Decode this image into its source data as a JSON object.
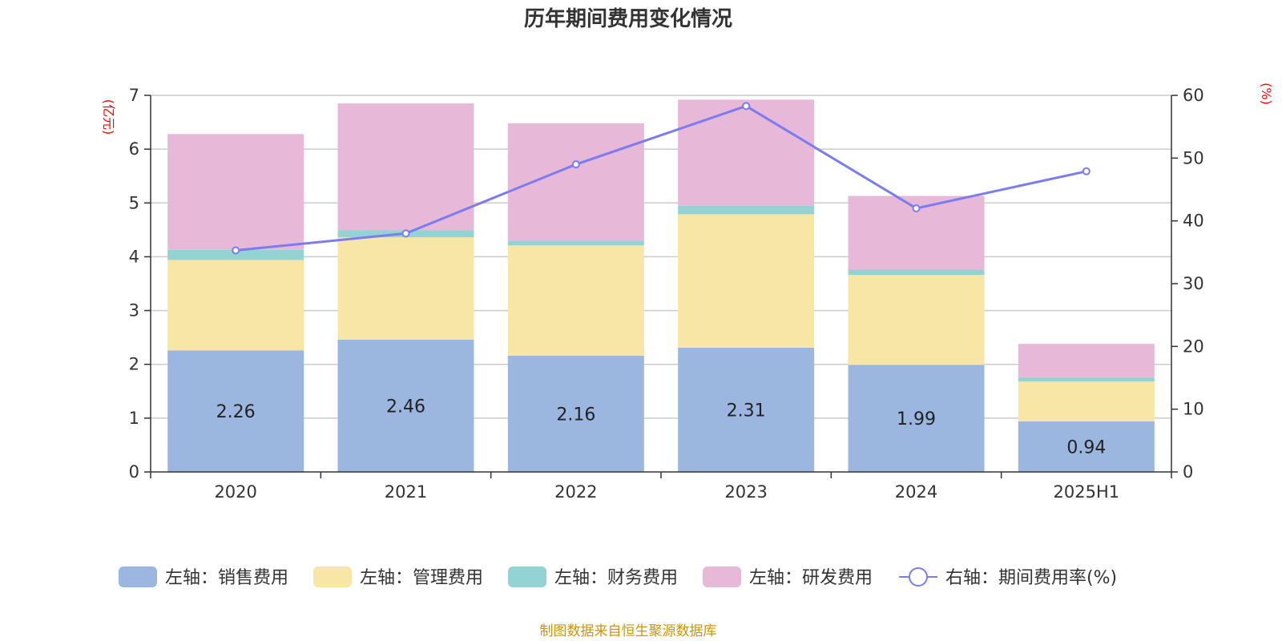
{
  "chart_data": {
    "type": "bar",
    "title": "历年期间费用变化情况",
    "categories": [
      "2020",
      "2021",
      "2022",
      "2023",
      "2024",
      "2025H1"
    ],
    "left_axis": {
      "unit": "(亿元)",
      "ylim": [
        0,
        7
      ],
      "ticks": [
        "0",
        "1",
        "2",
        "3",
        "4",
        "5",
        "6",
        "7"
      ]
    },
    "right_axis": {
      "unit": "(%)",
      "ylim": [
        0,
        60
      ],
      "ticks": [
        "0",
        "10",
        "20",
        "30",
        "40",
        "50",
        "60"
      ]
    },
    "grid": true,
    "legend_position": "bottom",
    "series": [
      {
        "name": "左轴：销售费用",
        "type": "bar",
        "stack": true,
        "axis": "left",
        "color": "#9bb7e0",
        "values": [
          2.26,
          2.46,
          2.16,
          2.31,
          1.99,
          0.94
        ],
        "labels": [
          "2.26",
          "2.46",
          "2.16",
          "2.31",
          "1.99",
          "0.94"
        ]
      },
      {
        "name": "左轴：管理费用",
        "type": "bar",
        "stack": true,
        "axis": "left",
        "color": "#f7e6a6",
        "values": [
          1.68,
          1.9,
          2.05,
          2.48,
          1.67,
          0.74
        ]
      },
      {
        "name": "左轴：财务费用",
        "type": "bar",
        "stack": true,
        "axis": "left",
        "color": "#94d3d4",
        "values": [
          0.19,
          0.13,
          0.09,
          0.16,
          0.1,
          0.08
        ]
      },
      {
        "name": "左轴：研发费用",
        "type": "bar",
        "stack": true,
        "axis": "left",
        "color": "#e7b8d8",
        "values": [
          2.15,
          2.36,
          2.18,
          1.97,
          1.37,
          0.62
        ]
      },
      {
        "name": "右轴：期间费用率(%)",
        "type": "line",
        "axis": "right",
        "color": "#7b7cf0",
        "values": [
          35.3,
          38.0,
          49.0,
          58.3,
          42.0,
          47.9
        ]
      }
    ]
  },
  "footer": {
    "source": "制图数据来自恒生聚源数据库"
  }
}
